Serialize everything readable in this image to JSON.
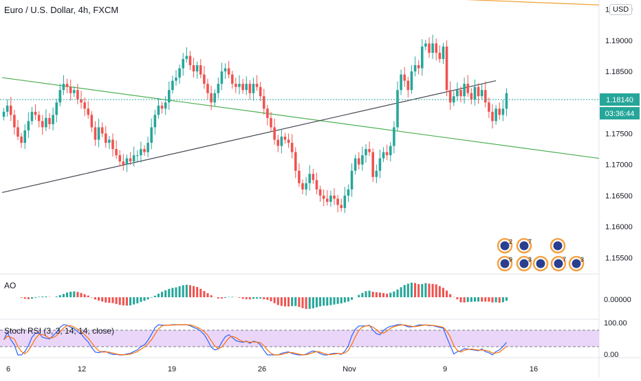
{
  "header": {
    "symbol_title": "Euro / U.S. Dollar, 4h, FXCM",
    "currency": "USD"
  },
  "price_axis": {
    "ticks": [
      "1.19500",
      "1.19000",
      "1.18500",
      "1.17500",
      "1.17000",
      "1.16500",
      "1.16000",
      "1.15500"
    ],
    "last_price": "1.18140",
    "countdown": "03:36:44"
  },
  "ao_panel": {
    "label": "AO",
    "tick": "0.00000"
  },
  "stoch_panel": {
    "label": "Stoch RSI (3, 3, 14, 14, close)",
    "ticks": [
      "100.00",
      "0.00"
    ]
  },
  "time_axis": {
    "labels": [
      "6",
      "12",
      "19",
      "26",
      "Nov",
      "9",
      "16"
    ]
  },
  "events": {
    "badges": [
      "2",
      "7",
      "9",
      "3",
      "7",
      "3"
    ]
  },
  "colors": {
    "up": "#26a69a",
    "down": "#ef5350",
    "last_price_bg": "#26a69a",
    "stoch_band": "#e1c4f7"
  },
  "chart_data": {
    "type": "candlestick",
    "symbol": "EUR/USD",
    "interval": "4h",
    "ylim": [
      1.1525,
      1.1965
    ],
    "last_close": 1.1814,
    "x_labels": [
      "6",
      "12",
      "19",
      "26",
      "Nov",
      "9",
      "16"
    ],
    "y_ticks": [
      1.195,
      1.19,
      1.185,
      1.175,
      1.17,
      1.165,
      1.16,
      1.155
    ],
    "closes": [
      1.1785,
      1.1795,
      1.178,
      1.176,
      1.1745,
      1.1735,
      1.1755,
      1.177,
      1.1785,
      1.178,
      1.177,
      1.176,
      1.1775,
      1.1765,
      1.178,
      1.18,
      1.182,
      1.183,
      1.1825,
      1.1815,
      1.182,
      1.1805,
      1.18,
      1.179,
      1.178,
      1.176,
      1.174,
      1.176,
      1.175,
      1.1735,
      1.174,
      1.1725,
      1.1715,
      1.1705,
      1.17,
      1.171,
      1.1705,
      1.1715,
      1.1715,
      1.1725,
      1.172,
      1.1735,
      1.176,
      1.178,
      1.1795,
      1.179,
      1.18,
      1.182,
      1.1835,
      1.184,
      1.1855,
      1.187,
      1.1875,
      1.186,
      1.185,
      1.186,
      1.1845,
      1.183,
      1.1815,
      1.18,
      1.1815,
      1.183,
      1.185,
      1.1855,
      1.1845,
      1.183,
      1.1825,
      1.183,
      1.182,
      1.183,
      1.1815,
      1.183,
      1.1825,
      1.181,
      1.179,
      1.1775,
      1.176,
      1.174,
      1.173,
      1.1745,
      1.174,
      1.1735,
      1.172,
      1.169,
      1.167,
      1.166,
      1.167,
      1.1685,
      1.1675,
      1.166,
      1.165,
      1.1645,
      1.164,
      1.165,
      1.1645,
      1.1635,
      1.163,
      1.165,
      1.166,
      1.169,
      1.171,
      1.17,
      1.1715,
      1.1725,
      1.172,
      1.168,
      1.169,
      1.171,
      1.172,
      1.1715,
      1.173,
      1.176,
      1.182,
      1.1845,
      1.1835,
      1.182,
      1.185,
      1.186,
      1.1855,
      1.189,
      1.1895,
      1.188,
      1.1895,
      1.188,
      1.187,
      1.189,
      1.182,
      1.18,
      1.181,
      1.182,
      1.181,
      1.183,
      1.1815,
      1.1805,
      1.1825,
      1.181,
      1.182,
      1.18,
      1.1785,
      1.177,
      1.179,
      1.178,
      1.179,
      1.1815
    ],
    "lines": [
      {
        "from": [
          0,
          1.184
        ],
        "to": [
          145,
          1.171
        ],
        "color": "#4caf50"
      },
      {
        "from": [
          0,
          1.1655
        ],
        "to": [
          140,
          1.1835
        ],
        "color": "#434651"
      },
      {
        "from": [
          60,
          1.1982
        ],
        "to": [
          145,
          1.1957
        ],
        "color": "#f0a030"
      }
    ],
    "indicators": [
      {
        "name": "AO",
        "zero_line": 0
      },
      {
        "name": "Stoch RSI (3, 3, 14, 14, close)",
        "range": [
          0,
          100
        ],
        "bands": [
          20,
          80
        ]
      }
    ]
  }
}
